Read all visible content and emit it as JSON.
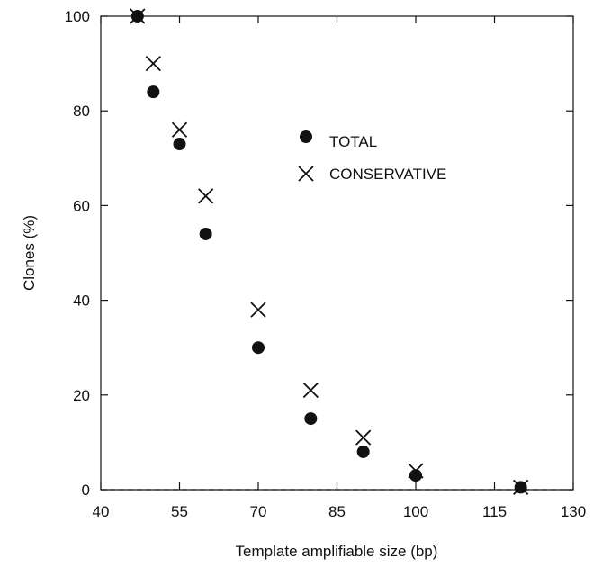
{
  "chart_data": {
    "type": "scatter",
    "xlabel": "Template amplifiable size (bp)",
    "ylabel": "Clones (%)",
    "xlim": [
      40,
      130
    ],
    "ylim": [
      0,
      100
    ],
    "x_ticks": [
      40,
      55,
      70,
      85,
      100,
      115,
      130
    ],
    "y_ticks": [
      0,
      20,
      40,
      60,
      80,
      100
    ],
    "grid": false,
    "zero_line": "dashed",
    "legend": {
      "placement": "upper-middle",
      "entries": [
        {
          "label": "TOTAL",
          "marker": "filled-circle"
        },
        {
          "label": "CONSERVATIVE",
          "marker": "x-cross"
        }
      ]
    },
    "series": [
      {
        "name": "TOTAL",
        "marker": "filled-circle",
        "points": [
          {
            "x": 47,
            "y": 100
          },
          {
            "x": 50,
            "y": 84
          },
          {
            "x": 55,
            "y": 73
          },
          {
            "x": 60,
            "y": 54
          },
          {
            "x": 70,
            "y": 30
          },
          {
            "x": 80,
            "y": 15
          },
          {
            "x": 90,
            "y": 8
          },
          {
            "x": 100,
            "y": 3
          },
          {
            "x": 120,
            "y": 0.5
          }
        ]
      },
      {
        "name": "CONSERVATIVE",
        "marker": "x-cross",
        "points": [
          {
            "x": 47,
            "y": 100
          },
          {
            "x": 50,
            "y": 90
          },
          {
            "x": 55,
            "y": 76
          },
          {
            "x": 60,
            "y": 62
          },
          {
            "x": 70,
            "y": 38
          },
          {
            "x": 80,
            "y": 21
          },
          {
            "x": 90,
            "y": 11
          },
          {
            "x": 100,
            "y": 4
          },
          {
            "x": 120,
            "y": 0.5
          }
        ]
      }
    ],
    "colors": {
      "marker": "#111111",
      "axis": "#111111"
    }
  }
}
